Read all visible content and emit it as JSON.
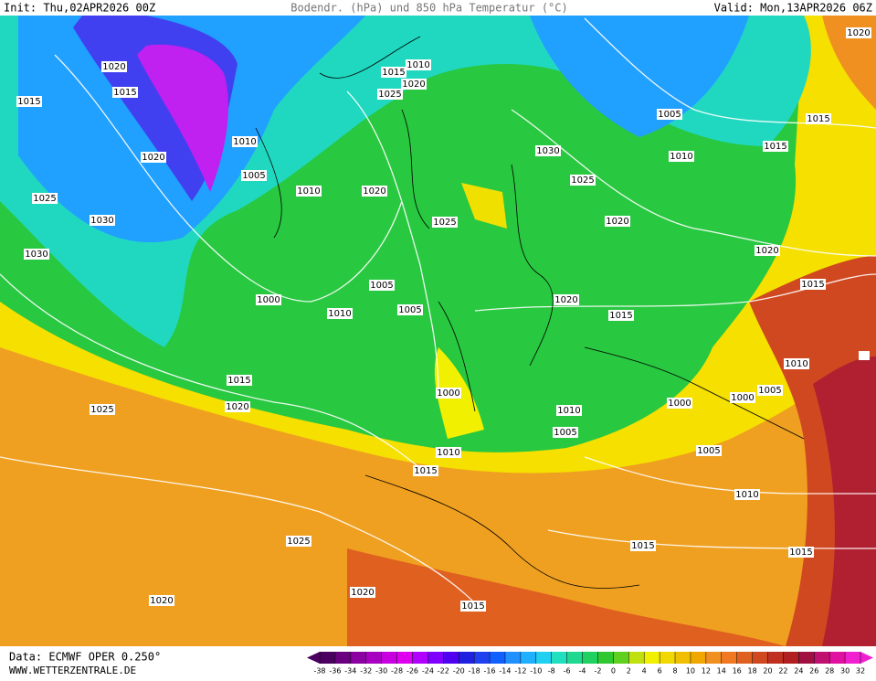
{
  "header": {
    "init": "Init: Thu,02APR2026 00Z",
    "title": "Bodendr. (hPa) und 850 hPa Temperatur (°C)",
    "valid": "Valid: Mon,13APR2026 06Z"
  },
  "footer": {
    "data": "Data: ECMWF OPER 0.250°",
    "site": "WWW.WETTERZENTRALE.DE"
  },
  "isobar_labels": [
    1020,
    1015,
    1015,
    1020,
    1025,
    1030,
    1030,
    1005,
    1010,
    1010,
    1015,
    1010,
    1020,
    1025,
    1020,
    1025,
    1030,
    1025,
    1005,
    1010,
    1015,
    1015,
    1020,
    1020,
    1020,
    1015,
    1000,
    1005,
    1010,
    1005,
    1020,
    1015,
    1015,
    1020,
    1025,
    1000,
    1010,
    1005,
    1000,
    1000,
    1005,
    1010,
    1005,
    1010,
    1015,
    1010,
    1025,
    1015,
    1015,
    1020,
    1020,
    1015
  ],
  "colorbar": {
    "ticks": [
      -38,
      -36,
      -34,
      -32,
      -30,
      -28,
      -26,
      -24,
      -22,
      -20,
      -18,
      -16,
      -14,
      -12,
      -10,
      -8,
      -6,
      -4,
      -2,
      0,
      2,
      4,
      6,
      8,
      10,
      12,
      14,
      16,
      18,
      20,
      22,
      24,
      26,
      28,
      30,
      32
    ],
    "colors": [
      "#4b0060",
      "#6a0080",
      "#8a00a0",
      "#a800c0",
      "#c800e0",
      "#e000f0",
      "#b000ff",
      "#8000ff",
      "#5000f0",
      "#2020e0",
      "#2040f0",
      "#1060ff",
      "#2090ff",
      "#20b0ff",
      "#20d0f0",
      "#20e0c0",
      "#20d890",
      "#20d060",
      "#30c830",
      "#60d020",
      "#c0e010",
      "#f0f000",
      "#f0d800",
      "#f0c000",
      "#f0a800",
      "#f09020",
      "#f07820",
      "#e06020",
      "#d04820",
      "#c03020",
      "#b02020",
      "#a01040",
      "#c01070",
      "#e010a0",
      "#f020d0"
    ]
  }
}
